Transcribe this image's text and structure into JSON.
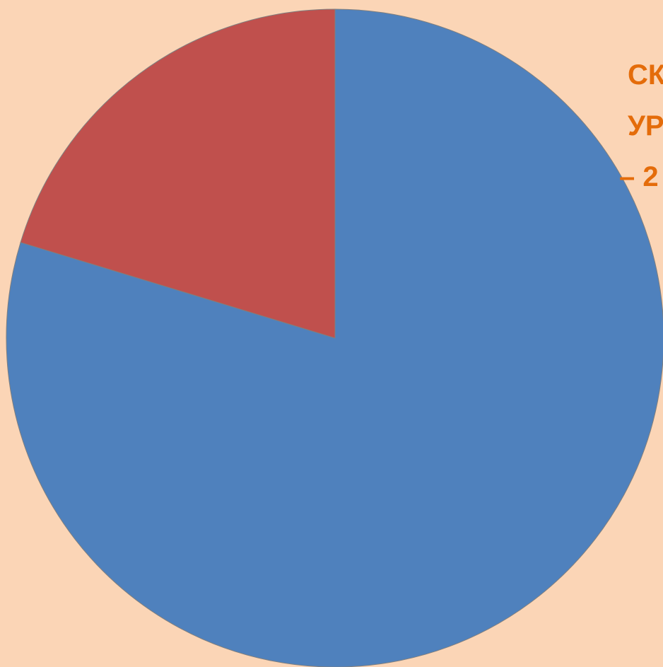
{
  "chart_data": {
    "type": "pie",
    "slices": [
      {
        "label": "",
        "value": 79.7,
        "color": "#4f81bd"
      },
      {
        "label": "",
        "value": 20.3,
        "color": "#c0504d"
      }
    ],
    "start": "12 o'clock",
    "direction": "clockwise",
    "slice_border_color": "#7f7f7f"
  },
  "annotation": {
    "lines": [
      "СК",
      "УР",
      "– 2"
    ],
    "color": "#e46c0a"
  },
  "background_color": "#fbd5b6"
}
